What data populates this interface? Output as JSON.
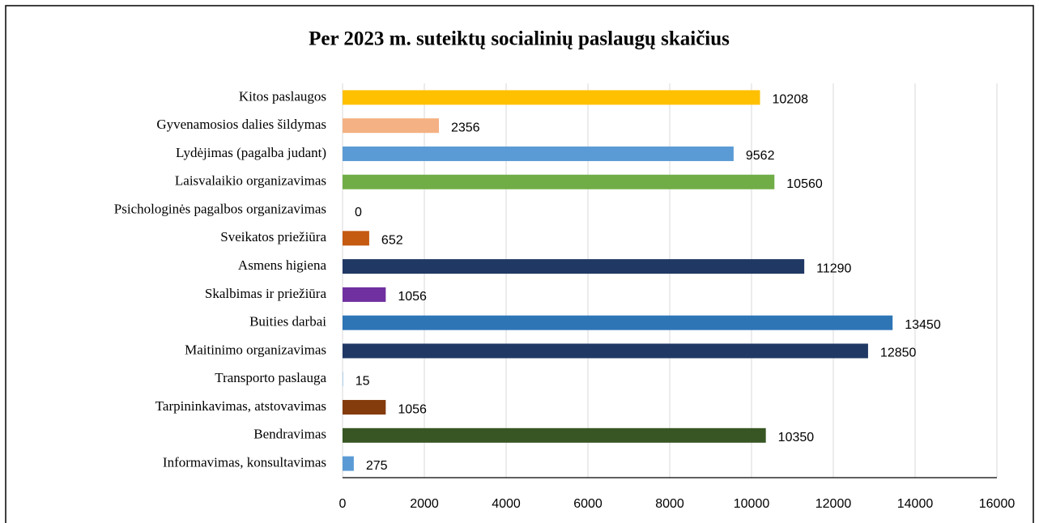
{
  "chart_data": {
    "type": "hbar",
    "title": "Per 2023 m. suteiktų socialinių paslaugų skaičius",
    "categories": [
      "Kitos paslaugos",
      "Gyvenamosios dalies šildymas",
      "Lydėjimas (pagalba judant)",
      "Laisvalaikio organizavimas",
      "Psichologinės pagalbos organizavimas",
      "Sveikatos priežiūra",
      "Asmens higiena",
      "Skalbimas ir priežiūra",
      "Buities darbai",
      "Maitinimo organizavimas",
      "Transporto paslauga",
      "Tarpininkavimas, atstovavimas",
      "Bendravimas",
      "Informavimas, konsultavimas"
    ],
    "values": [
      10208,
      2356,
      9562,
      10560,
      0,
      652,
      11290,
      1056,
      13450,
      12850,
      15,
      1056,
      10350,
      275
    ],
    "colors": [
      "#FFC000",
      "#F4B183",
      "#5B9BD5",
      "#70AD47",
      "#A5A5A5",
      "#C55A11",
      "#203864",
      "#7030A0",
      "#2E75B6",
      "#203864",
      "#9DC3E6",
      "#843C0C",
      "#375623",
      "#5B9BD5"
    ],
    "xlim": [
      0,
      16000
    ],
    "xticks": [
      0,
      2000,
      4000,
      6000,
      8000,
      10000,
      12000,
      14000,
      16000
    ],
    "grid": true
  }
}
